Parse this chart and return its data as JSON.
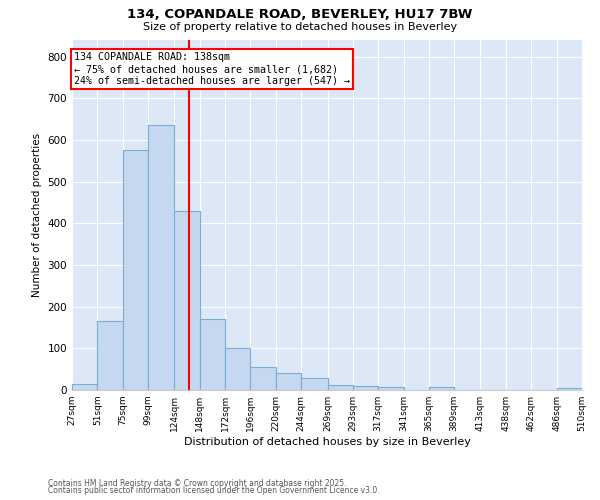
{
  "title1": "134, COPANDALE ROAD, BEVERLEY, HU17 7BW",
  "title2": "Size of property relative to detached houses in Beverley",
  "xlabel": "Distribution of detached houses by size in Beverley",
  "ylabel": "Number of detached properties",
  "bar_color": "#c5d8f0",
  "bar_edge_color": "#7aadd4",
  "plot_bg_color": "#dce8f5",
  "fig_bg_color": "#ffffff",
  "grid_color": "#ffffff",
  "bin_edges": [
    27,
    51,
    75,
    99,
    124,
    148,
    172,
    196,
    220,
    244,
    269,
    293,
    317,
    341,
    365,
    389,
    413,
    438,
    462,
    486,
    510
  ],
  "bar_heights": [
    15,
    165,
    575,
    635,
    430,
    170,
    100,
    55,
    40,
    30,
    12,
    10,
    8,
    0,
    7,
    0,
    0,
    0,
    0,
    5
  ],
  "property_size": 138,
  "vline_color": "red",
  "annotation_text": "134 COPANDALE ROAD: 138sqm\n← 75% of detached houses are smaller (1,682)\n24% of semi-detached houses are larger (547) →",
  "annotation_box_color": "white",
  "annotation_box_edge": "red",
  "ylim": [
    0,
    840
  ],
  "yticks": [
    0,
    100,
    200,
    300,
    400,
    500,
    600,
    700,
    800
  ],
  "xtick_labels": [
    "27sqm",
    "51sqm",
    "75sqm",
    "99sqm",
    "124sqm",
    "148sqm",
    "172sqm",
    "196sqm",
    "220sqm",
    "244sqm",
    "269sqm",
    "293sqm",
    "317sqm",
    "341sqm",
    "365sqm",
    "389sqm",
    "413sqm",
    "438sqm",
    "462sqm",
    "486sqm",
    "510sqm"
  ],
  "footer1": "Contains HM Land Registry data © Crown copyright and database right 2025.",
  "footer2": "Contains public sector information licensed under the Open Government Licence v3.0."
}
